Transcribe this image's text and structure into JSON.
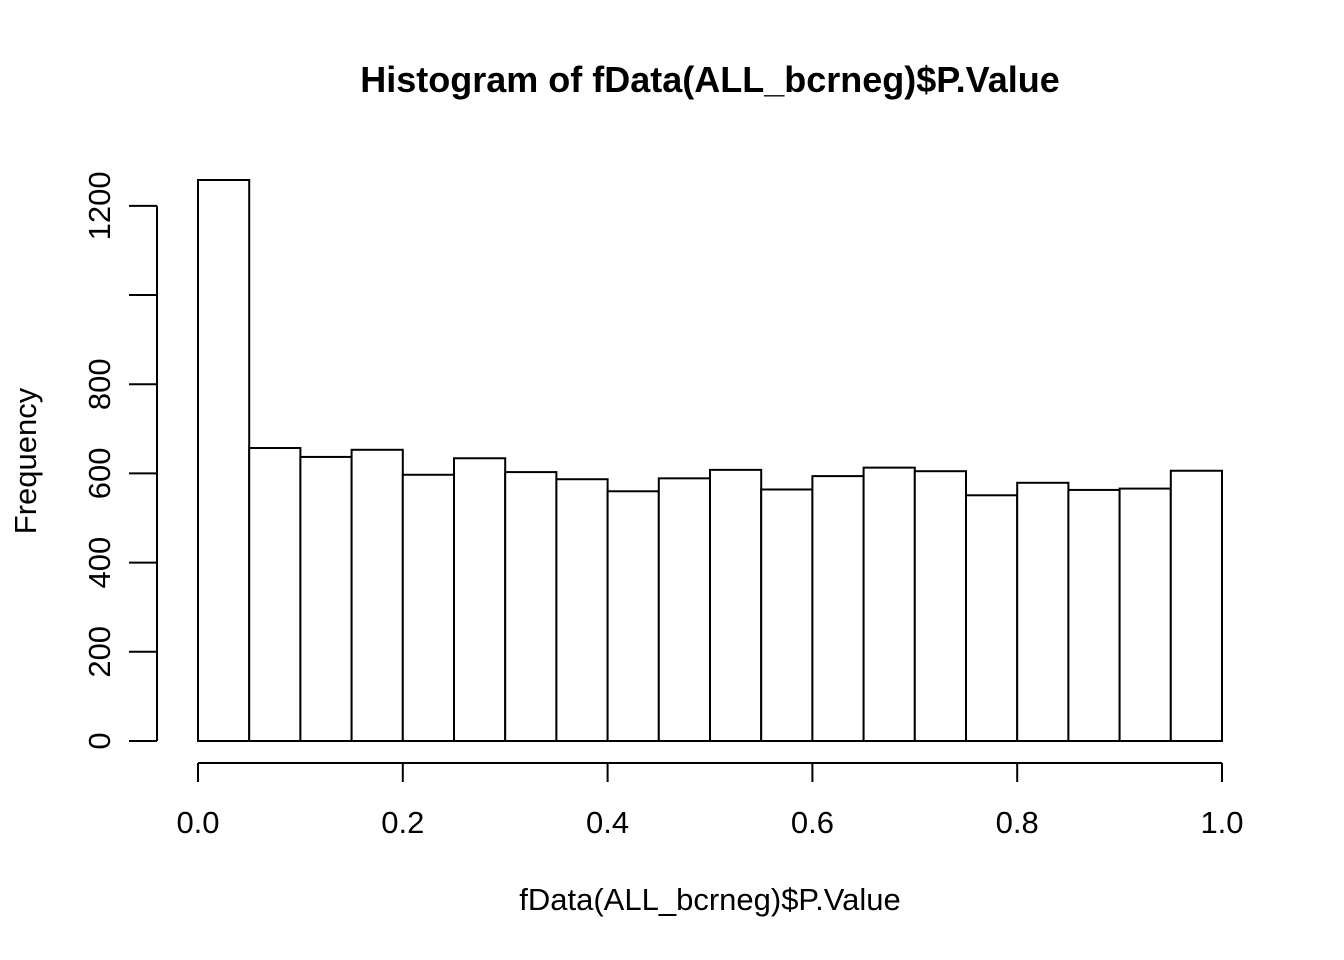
{
  "chart_data": {
    "type": "bar",
    "title": "Histogram of fData(ALL_bcrneg)$P.Value",
    "xlabel": "fData(ALL_bcrneg)$P.Value",
    "ylabel": "Frequency",
    "bins": [
      {
        "x0": 0.0,
        "x1": 0.05,
        "count": 1258
      },
      {
        "x0": 0.05,
        "x1": 0.1,
        "count": 657
      },
      {
        "x0": 0.1,
        "x1": 0.15,
        "count": 637
      },
      {
        "x0": 0.15,
        "x1": 0.2,
        "count": 653
      },
      {
        "x0": 0.2,
        "x1": 0.25,
        "count": 597
      },
      {
        "x0": 0.25,
        "x1": 0.3,
        "count": 634
      },
      {
        "x0": 0.3,
        "x1": 0.35,
        "count": 603
      },
      {
        "x0": 0.35,
        "x1": 0.4,
        "count": 587
      },
      {
        "x0": 0.4,
        "x1": 0.45,
        "count": 560
      },
      {
        "x0": 0.45,
        "x1": 0.5,
        "count": 589
      },
      {
        "x0": 0.5,
        "x1": 0.55,
        "count": 608
      },
      {
        "x0": 0.55,
        "x1": 0.6,
        "count": 564
      },
      {
        "x0": 0.6,
        "x1": 0.65,
        "count": 594
      },
      {
        "x0": 0.65,
        "x1": 0.7,
        "count": 613
      },
      {
        "x0": 0.7,
        "x1": 0.75,
        "count": 605
      },
      {
        "x0": 0.75,
        "x1": 0.8,
        "count": 551
      },
      {
        "x0": 0.8,
        "x1": 0.85,
        "count": 579
      },
      {
        "x0": 0.85,
        "x1": 0.9,
        "count": 563
      },
      {
        "x0": 0.9,
        "x1": 0.95,
        "count": 566
      },
      {
        "x0": 0.95,
        "x1": 1.0,
        "count": 606
      }
    ],
    "xlim": [
      0,
      1
    ],
    "ylim": [
      0,
      1258
    ],
    "x_ticks": [
      0.0,
      0.2,
      0.4,
      0.6,
      0.8,
      1.0
    ],
    "x_tick_labels": [
      "0.0",
      "0.2",
      "0.4",
      "0.6",
      "0.8",
      "1.0"
    ],
    "y_ticks": [
      0,
      200,
      400,
      600,
      800,
      1000,
      1200
    ],
    "y_tick_labels": [
      "0",
      "200",
      "400",
      "600",
      "800",
      "",
      "1200"
    ],
    "grid": false,
    "legend": "none",
    "colors": {
      "bar_fill": "#ffffff",
      "bar_stroke": "#000000",
      "background": "#ffffff"
    }
  }
}
